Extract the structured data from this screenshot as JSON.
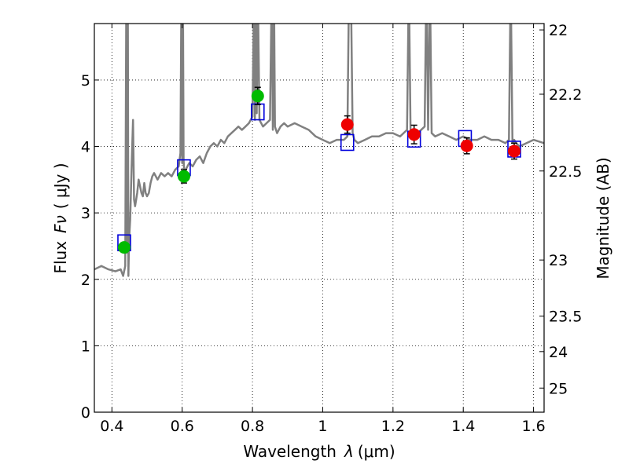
{
  "chart_data": {
    "type": "scatter",
    "title": "",
    "xlabel_text": "Wavelength",
    "xlabel_symbol": "λ",
    "xlabel_unit": "(μm)",
    "ylabel_text": "Flux",
    "ylabel_symbol": "Fν",
    "ylabel_unit": "( μJy )",
    "y2label": "Magnitude (AB)",
    "xlim": [
      0.35,
      1.63
    ],
    "ylim": [
      0,
      5.85
    ],
    "grid": true,
    "x_ticks": [
      0.4,
      0.6,
      0.8,
      1.0,
      1.2,
      1.4,
      1.6
    ],
    "x_tick_labels": [
      "0.4",
      "0.6",
      "0.8",
      "1",
      "1.2",
      "1.4",
      "1.6"
    ],
    "y_ticks": [
      0,
      1,
      2,
      3,
      4,
      5
    ],
    "y_tick_labels": [
      "0",
      "1",
      "2",
      "3",
      "4",
      "5"
    ],
    "y2_ticks": [
      22,
      22.2,
      22.5,
      23,
      23.5,
      24,
      25
    ],
    "y2_tick_labels": [
      "22",
      "22.2",
      "22.5",
      "23",
      "23.5",
      "24",
      "25"
    ],
    "colors": {
      "spectrum": "#808080",
      "model": "#0000dd",
      "optical": "#00bb00",
      "nir": "#ee0000",
      "errorbar": "#000000"
    },
    "series": [
      {
        "name": "model spectrum",
        "kind": "line",
        "x": [
          0.35,
          0.37,
          0.39,
          0.41,
          0.425,
          0.432,
          0.438,
          0.441,
          0.443,
          0.445,
          0.447,
          0.449,
          0.452,
          0.456,
          0.46,
          0.463,
          0.466,
          0.469,
          0.472,
          0.476,
          0.48,
          0.484,
          0.488,
          0.492,
          0.496,
          0.5,
          0.505,
          0.51,
          0.515,
          0.52,
          0.53,
          0.54,
          0.55,
          0.56,
          0.57,
          0.58,
          0.59,
          0.595,
          0.598,
          0.6,
          0.602,
          0.604,
          0.606,
          0.61,
          0.615,
          0.62,
          0.63,
          0.64,
          0.65,
          0.66,
          0.67,
          0.68,
          0.69,
          0.7,
          0.71,
          0.72,
          0.73,
          0.74,
          0.75,
          0.76,
          0.77,
          0.78,
          0.79,
          0.8,
          0.805,
          0.807,
          0.81,
          0.812,
          0.815,
          0.82,
          0.83,
          0.84,
          0.85,
          0.855,
          0.858,
          0.861,
          0.864,
          0.87,
          0.88,
          0.89,
          0.9,
          0.92,
          0.94,
          0.96,
          0.98,
          1.0,
          1.02,
          1.04,
          1.06,
          1.07,
          1.075,
          1.08,
          1.085,
          1.09,
          1.1,
          1.12,
          1.14,
          1.16,
          1.18,
          1.2,
          1.22,
          1.24,
          1.245,
          1.25,
          1.255,
          1.26,
          1.27,
          1.28,
          1.29,
          1.295,
          1.3,
          1.305,
          1.31,
          1.32,
          1.34,
          1.36,
          1.38,
          1.4,
          1.42,
          1.44,
          1.46,
          1.48,
          1.5,
          1.52,
          1.53,
          1.535,
          1.54,
          1.545,
          1.55,
          1.56,
          1.58,
          1.6,
          1.63
        ],
        "y": [
          2.15,
          2.2,
          2.15,
          2.12,
          2.15,
          2.05,
          2.2,
          6.5,
          2.4,
          6.5,
          2.05,
          2.6,
          2.9,
          3.7,
          4.4,
          3.2,
          3.1,
          3.2,
          3.3,
          3.5,
          3.4,
          3.3,
          3.25,
          3.45,
          3.3,
          3.25,
          3.3,
          3.45,
          3.55,
          3.6,
          3.5,
          3.6,
          3.55,
          3.6,
          3.55,
          3.65,
          3.7,
          3.9,
          6.5,
          3.75,
          6.5,
          3.8,
          3.6,
          3.65,
          3.7,
          3.75,
          3.7,
          3.8,
          3.85,
          3.75,
          3.9,
          4.0,
          4.05,
          4.0,
          4.1,
          4.05,
          4.15,
          4.2,
          4.25,
          4.3,
          4.25,
          4.3,
          4.35,
          4.45,
          6.5,
          4.4,
          6.5,
          4.5,
          6.5,
          4.4,
          4.3,
          4.35,
          4.4,
          6.5,
          4.25,
          6.5,
          4.3,
          4.2,
          4.3,
          4.35,
          4.3,
          4.35,
          4.3,
          4.25,
          4.15,
          4.1,
          4.05,
          4.1,
          4.1,
          4.15,
          6.5,
          6.5,
          4.2,
          4.1,
          4.05,
          4.1,
          4.15,
          4.15,
          4.2,
          4.2,
          4.15,
          4.25,
          6.5,
          4.2,
          4.15,
          4.2,
          4.2,
          4.25,
          4.3,
          6.5,
          4.25,
          6.5,
          4.2,
          4.15,
          4.2,
          4.15,
          4.1,
          4.15,
          4.1,
          4.1,
          4.15,
          4.1,
          4.1,
          4.05,
          4.1,
          6.5,
          4.05,
          4.1,
          4.05,
          4.0,
          4.05,
          4.1,
          4.05
        ]
      },
      {
        "name": "model photometry",
        "kind": "open-square",
        "x": [
          0.435,
          0.605,
          0.815,
          1.07,
          1.26,
          1.405,
          1.545
        ],
        "y": [
          2.55,
          3.68,
          4.52,
          4.06,
          4.11,
          4.12,
          3.96
        ]
      },
      {
        "name": "optical photometry",
        "kind": "point",
        "x": [
          0.435,
          0.605,
          0.815
        ],
        "y": [
          2.48,
          3.55,
          4.76
        ],
        "err": [
          0.06,
          0.1,
          0.13
        ]
      },
      {
        "name": "NIR photometry",
        "kind": "point",
        "x": [
          1.07,
          1.26,
          1.41,
          1.545
        ],
        "y": [
          4.33,
          4.18,
          4.01,
          3.93
        ],
        "err": [
          0.13,
          0.14,
          0.12,
          0.12
        ]
      }
    ]
  }
}
